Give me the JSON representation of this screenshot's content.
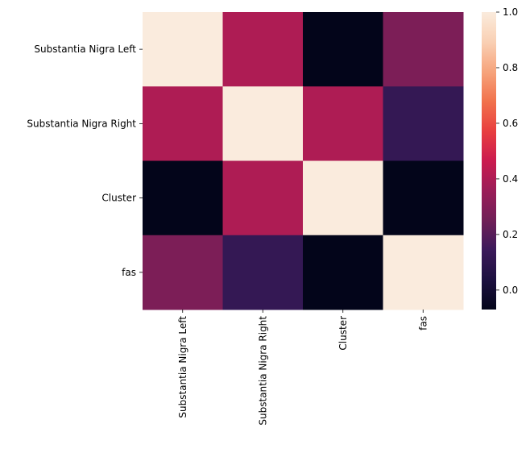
{
  "chart_data": {
    "type": "heatmap",
    "title": "",
    "xlabel": "",
    "ylabel": "",
    "rows": [
      "Substantia Nigra Left",
      "Substantia Nigra Right",
      "Cluster",
      "fas"
    ],
    "columns": [
      "Substantia Nigra Left",
      "Substantia Nigra Right",
      "Cluster",
      "fas"
    ],
    "values": [
      [
        1.0,
        0.4,
        -0.07,
        0.28
      ],
      [
        0.4,
        1.0,
        0.4,
        0.12
      ],
      [
        -0.07,
        0.4,
        1.0,
        -0.07
      ],
      [
        0.28,
        0.12,
        -0.07,
        1.0
      ]
    ],
    "colorbar": {
      "vmin": -0.07,
      "vmax": 1.0,
      "ticks": [
        0.0,
        0.2,
        0.4,
        0.6,
        0.8,
        1.0
      ],
      "tick_labels": [
        "0.0",
        "0.2",
        "0.4",
        "0.6",
        "0.8",
        "1.0"
      ],
      "colormap": "rocket"
    }
  }
}
